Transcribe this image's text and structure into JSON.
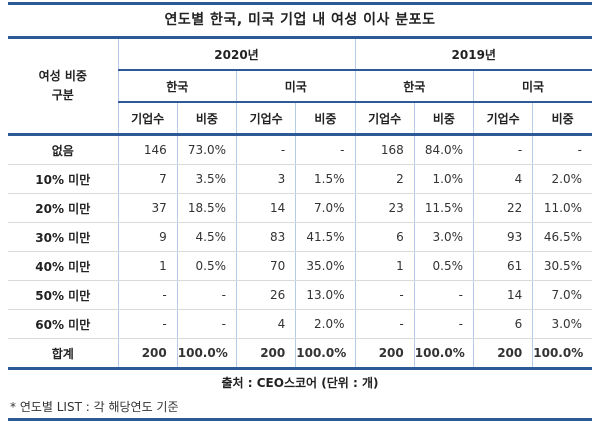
{
  "title": "연도별 한국, 미국 기업 내 여성 이사 분포도",
  "header": {
    "corner_line1": "여성 비중",
    "corner_line2": "구분",
    "years": [
      "2020년",
      "2019년"
    ],
    "countries": [
      "한국",
      "미국",
      "한국",
      "미국"
    ],
    "metrics": [
      "기업수",
      "비중",
      "기업수",
      "비중",
      "기업수",
      "비중",
      "기업수",
      "비중"
    ]
  },
  "chart_data": {
    "type": "table",
    "title": "연도별 한국, 미국 기업 내 여성 이사 분포도",
    "columns": [
      "여성 비중 구분",
      "2020년 한국 기업수",
      "2020년 한국 비중",
      "2020년 미국 기업수",
      "2020년 미국 비중",
      "2019년 한국 기업수",
      "2019년 한국 비중",
      "2019년 미국 기업수",
      "2019년 미국 비중"
    ],
    "rows": [
      [
        "없음",
        "146",
        "73.0%",
        "-",
        "-",
        "168",
        "84.0%",
        "-",
        "-"
      ],
      [
        "10% 미만",
        "7",
        "3.5%",
        "3",
        "1.5%",
        "2",
        "1.0%",
        "4",
        "2.0%"
      ],
      [
        "20% 미만",
        "37",
        "18.5%",
        "14",
        "7.0%",
        "23",
        "11.5%",
        "22",
        "11.0%"
      ],
      [
        "30% 미만",
        "9",
        "4.5%",
        "83",
        "41.5%",
        "6",
        "3.0%",
        "93",
        "46.5%"
      ],
      [
        "40% 미만",
        "1",
        "0.5%",
        "70",
        "35.0%",
        "1",
        "0.5%",
        "61",
        "30.5%"
      ],
      [
        "50% 미만",
        "-",
        "-",
        "26",
        "13.0%",
        "-",
        "-",
        "14",
        "7.0%"
      ],
      [
        "60% 미만",
        "-",
        "-",
        "4",
        "2.0%",
        "-",
        "-",
        "6",
        "3.0%"
      ],
      [
        "합계",
        "200",
        "100.0%",
        "200",
        "100.0%",
        "200",
        "100.0%",
        "200",
        "100.0%"
      ]
    ]
  },
  "footer": {
    "source": "출처 : CEO스코어 (단위 : 개)",
    "note": "* 연도별 LIST : 각 해당연도 기준"
  },
  "colors": {
    "accent_line": "#2D5A96",
    "divider_vertical": "#B4CCE6",
    "divider_horizontal": "#D9D9D9",
    "text": "#333333"
  }
}
